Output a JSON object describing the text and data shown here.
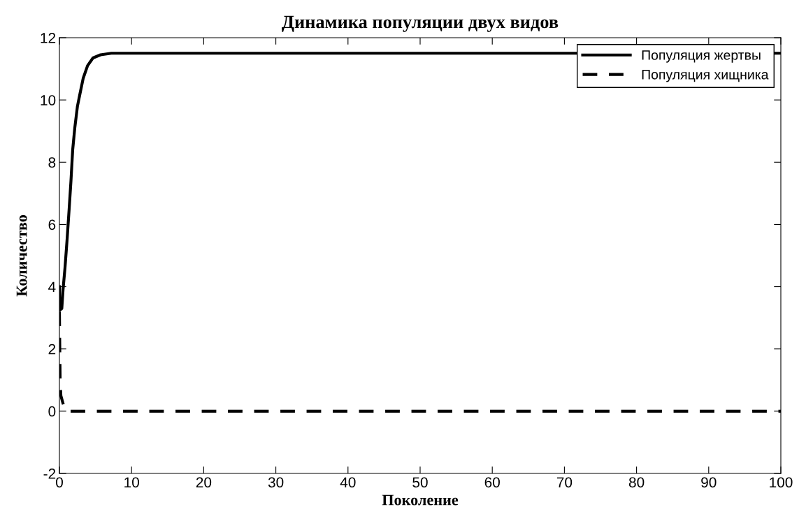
{
  "chart_data": {
    "type": "line",
    "title": "Динамика популяции двух видов",
    "xlabel": "Поколение",
    "ylabel": "Количество",
    "xlim": [
      0,
      100
    ],
    "xticks": [
      0,
      10,
      20,
      30,
      40,
      50,
      60,
      70,
      80,
      90,
      100
    ],
    "ylim": [
      -2,
      12
    ],
    "yticks": [
      -2,
      0,
      2,
      4,
      6,
      8,
      10,
      12
    ],
    "grid": false,
    "legend": "top right",
    "series": [
      {
        "name": "Популяция жертвы",
        "color": "#000000",
        "line_style": "solid",
        "x": [
          0,
          0.05,
          0.33,
          0.5,
          0.77,
          1.06,
          1.35,
          1.6,
          1.84,
          2.13,
          2.5,
          2.85,
          3.3,
          3.9,
          4.65,
          5.7,
          7.2,
          100
        ],
        "values": [
          4.0,
          3.25,
          3.3,
          3.9,
          4.6,
          5.5,
          6.5,
          7.4,
          8.4,
          9.1,
          9.8,
          10.2,
          10.7,
          11.1,
          11.35,
          11.45,
          11.5,
          11.5
        ]
      },
      {
        "name": "Популяция хищника",
        "color": "#000000",
        "line_style": "dashed",
        "x": [
          0,
          0.05,
          0.1,
          0.2,
          0.5,
          0.75,
          1.0,
          100
        ],
        "values": [
          3.2,
          2.0,
          1.0,
          0.5,
          0.25,
          0.1,
          0,
          0
        ]
      }
    ]
  }
}
